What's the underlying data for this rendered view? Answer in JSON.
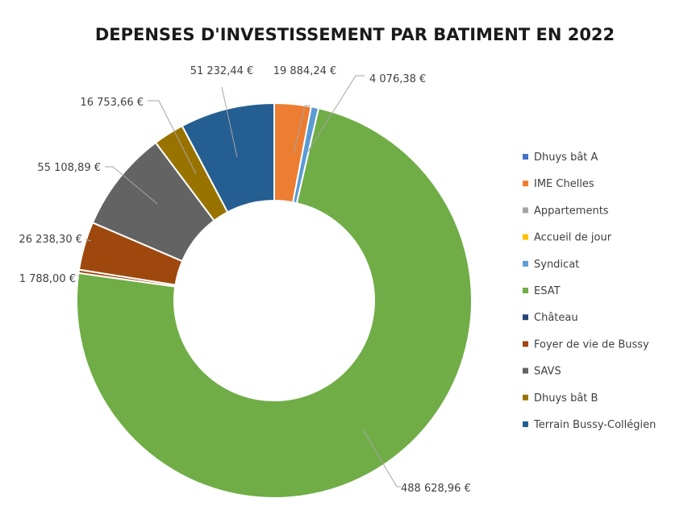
{
  "chart_data": {
    "type": "pie",
    "variant": "doughnut",
    "title": "DEPENSES D'INVESTISSEMENT PAR BATIMENT EN 2022",
    "legend_position": "right",
    "slices": [
      {
        "name": "Dhuys bât A",
        "value": 0,
        "label": "",
        "color": "#4472c4"
      },
      {
        "name": "IME Chelles",
        "value": 19884.24,
        "label": "19 884,24 €",
        "color": "#ed7d31"
      },
      {
        "name": "Appartements",
        "value": 0,
        "label": "",
        "color": "#a5a5a5"
      },
      {
        "name": "Accueil de jour",
        "value": 0,
        "label": "",
        "color": "#ffc000"
      },
      {
        "name": "Syndicat",
        "value": 4076.38,
        "label": "4 076,38 €",
        "color": "#5b9bd5"
      },
      {
        "name": "ESAT",
        "value": 488628.96,
        "label": "488 628,96 €",
        "color": "#70ad47"
      },
      {
        "name": "Château",
        "value": 0,
        "label": "",
        "color": "#264478"
      },
      {
        "name": "Foyer de vie de Bussy",
        "value": 1788.0,
        "label": "1 788,00 €",
        "color": "#9e480e"
      },
      {
        "name": "Foyer de vie de Bussy",
        "value": 26238.3,
        "label": "26 238,30 €",
        "color": "#9e480e"
      },
      {
        "name": "SAVS",
        "value": 55108.89,
        "label": "55 108,89 €",
        "color": "#636363"
      },
      {
        "name": "Dhuys bât B",
        "value": 16753.66,
        "label": "16 753,66 €",
        "color": "#997300"
      },
      {
        "name": "Terrain Bussy-Collégien",
        "value": 51232.44,
        "label": "51 232,44 €",
        "color": "#255e91"
      }
    ],
    "legend": [
      {
        "name": "Dhuys bât A",
        "color": "#4472c4"
      },
      {
        "name": "IME Chelles",
        "color": "#ed7d31"
      },
      {
        "name": "Appartements",
        "color": "#a5a5a5"
      },
      {
        "name": "Accueil de jour",
        "color": "#ffc000"
      },
      {
        "name": "Syndicat",
        "color": "#5b9bd5"
      },
      {
        "name": "ESAT",
        "color": "#70ad47"
      },
      {
        "name": "Château",
        "color": "#264478"
      },
      {
        "name": "Foyer de vie de Bussy",
        "color": "#9e480e"
      },
      {
        "name": "SAVS",
        "color": "#636363"
      },
      {
        "name": "Dhuys bât B",
        "color": "#997300"
      },
      {
        "name": "Terrain Bussy-Collégien",
        "color": "#255e91"
      }
    ]
  }
}
